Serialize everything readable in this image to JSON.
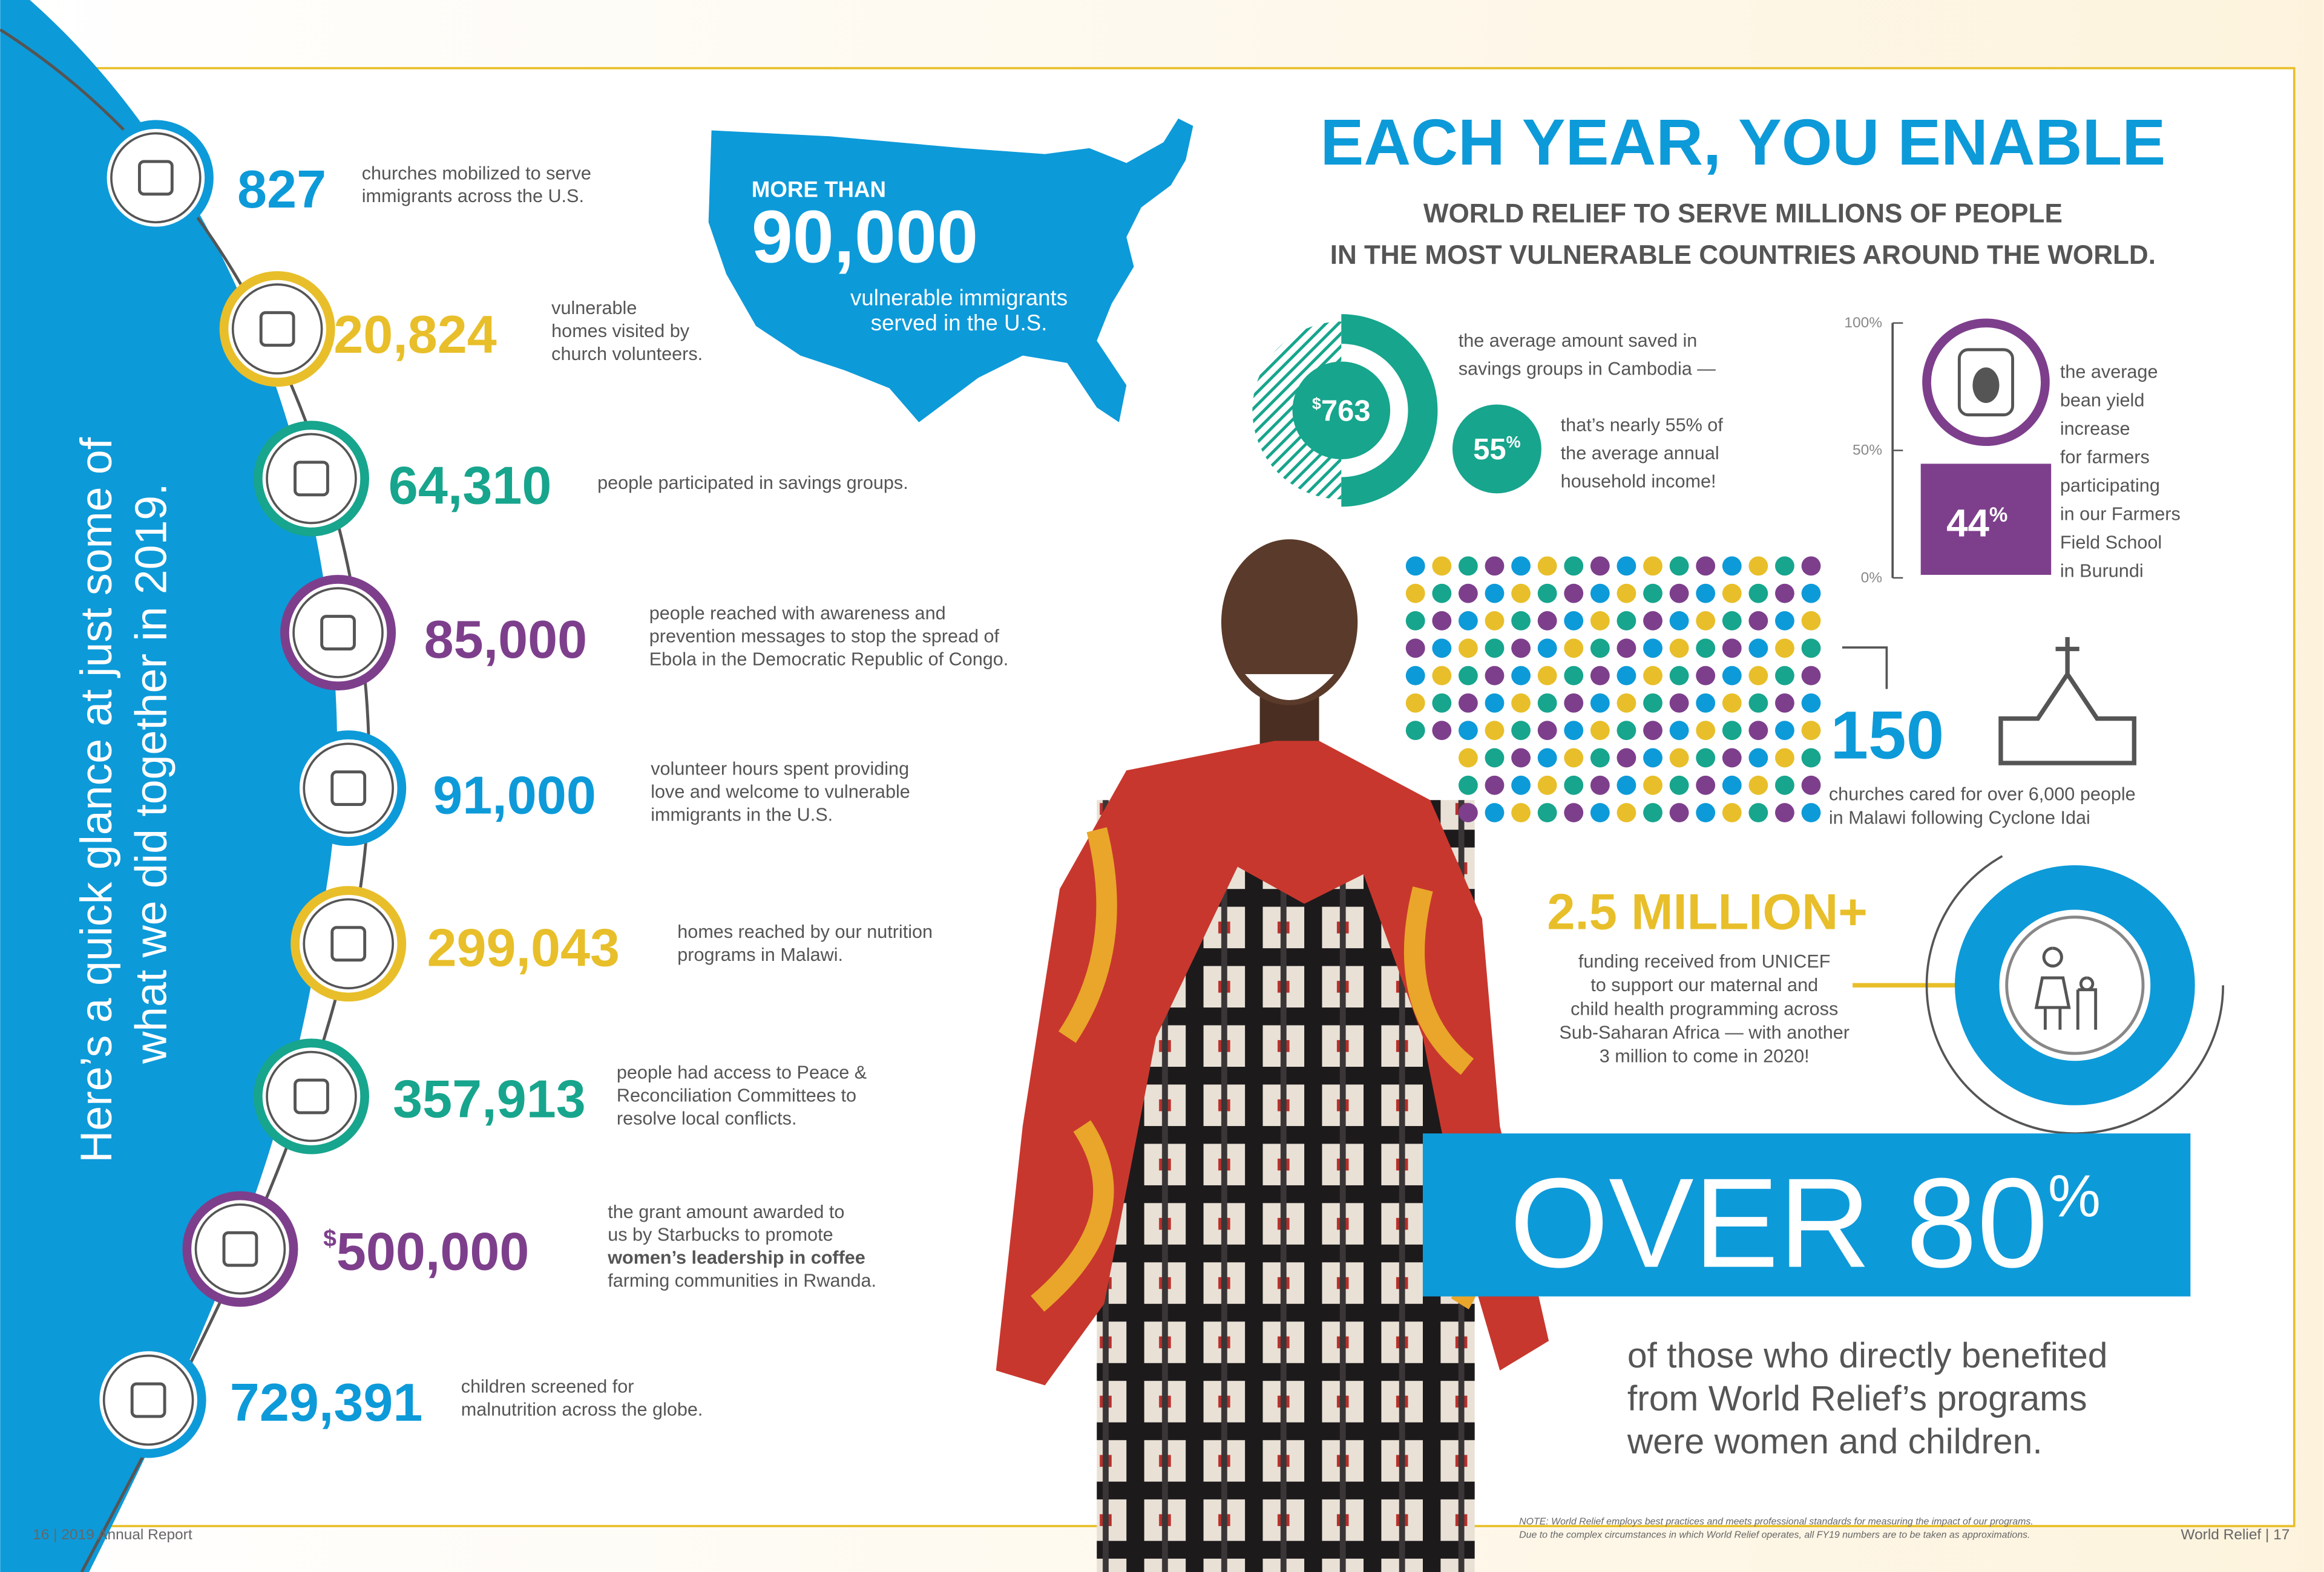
{
  "left_panel": {
    "lines": [
      "Here’s a quick glance at just some of",
      "what we did together in 2019."
    ]
  },
  "stats": [
    {
      "number": "827",
      "lines": [
        "churches mobilized to serve",
        "immigrants across the U.S."
      ]
    },
    {
      "number": "20,824",
      "lines": [
        "vulnerable",
        "homes visited by",
        "church volunteers."
      ]
    },
    {
      "number": "64,310",
      "lines": [
        "people participated in savings groups."
      ]
    },
    {
      "number": "85,000",
      "lines": [
        "people reached with awareness and",
        "prevention messages to stop the spread of",
        "Ebola in the Democratic Republic of Congo."
      ]
    },
    {
      "number": "91,000",
      "lines": [
        "volunteer hours spent providing",
        "love and welcome to vulnerable",
        "immigrants in the U.S."
      ]
    },
    {
      "number": "299,043",
      "lines": [
        "homes reached by our nutrition",
        "programs in Malawi."
      ]
    },
    {
      "number": "357,913",
      "lines": [
        "people had access to Peace &",
        "Reconciliation Committees to",
        "resolve local conflicts."
      ]
    },
    {
      "prefix": "$",
      "number": "500,000",
      "lines": [
        "the grant amount awarded to",
        "us by Starbucks to promote",
        "women’s leadership in coffee",
        "farming communities in Rwanda."
      ]
    },
    {
      "number": "729,391",
      "lines": [
        "children screened for",
        "malnutrition across the globe."
      ]
    }
  ],
  "us_map": {
    "kicker": "MORE THAN",
    "number": "90,000",
    "lines": [
      "vulnerable immigrants",
      "served in the U.S."
    ]
  },
  "headline": {
    "title": "EACH YEAR, YOU ENABLE",
    "subtitle": [
      "WORLD RELIEF TO SERVE MILLIONS OF PEOPLE",
      "IN THE MOST VULNERABLE COUNTRIES AROUND THE WORLD."
    ]
  },
  "savings": {
    "prefix": "$",
    "amount": "763",
    "percent": "55",
    "percent_sign": "%",
    "lines_top": [
      "the average amount saved in",
      "savings groups in Cambodia —"
    ],
    "lines_bottom": [
      "that’s nearly 55% of",
      "the average annual",
      "household income!"
    ]
  },
  "bean_yield": {
    "axis": [
      "100%",
      "50%",
      "0%"
    ],
    "value": "44",
    "value_sign": "%",
    "lines": [
      "the average",
      "bean yield",
      "increase",
      "for farmers",
      "participating",
      "in our Farmers",
      "Field School",
      "in Burundi"
    ]
  },
  "churches": {
    "number": "150",
    "lines": [
      "churches cared for over 6,000 people",
      "in Malawi following Cyclone Idai"
    ]
  },
  "unicef": {
    "amount": "2.5 MILLION+",
    "lines": [
      "funding received from UNICEF",
      "to support our maternal and",
      "child health programming across",
      "Sub-Saharan Africa — with another",
      "3 million to come in 2020!"
    ]
  },
  "women": {
    "headline": "OVER 80",
    "sign": "%",
    "lines": [
      "of those who directly benefited",
      "from World Relief’s programs",
      "were women and children."
    ]
  },
  "footer": {
    "left": "16 | 2019 Annual Report",
    "right": "World Relief | 17",
    "note": [
      "NOTE: World Relief employs best practices and meets professional standards for measuring the impact of our programs.",
      "Due to the complex circumstances in which World Relief operates, all FY19 numbers are to be taken as approximations."
    ]
  }
}
